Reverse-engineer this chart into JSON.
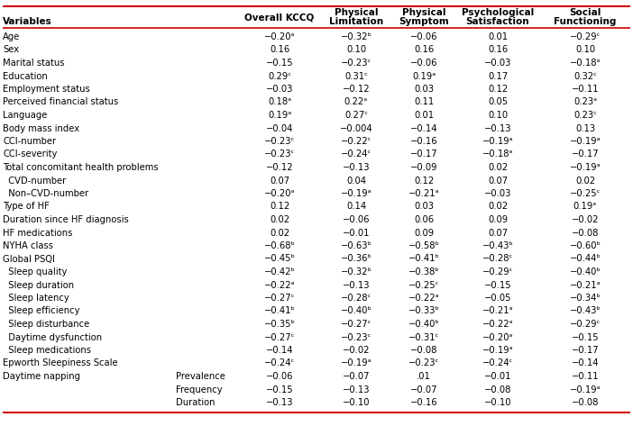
{
  "col_headers_line1": [
    "",
    "",
    "",
    "Physical",
    "Physical",
    "Psychological",
    "Social"
  ],
  "col_headers_line2": [
    "Variables",
    "",
    "Overall KCCQ",
    "Limitation",
    "Symptom",
    "Satisfaction",
    "Functioning"
  ],
  "rows": [
    {
      "var": "Age",
      "sub": "",
      "vals": [
        "−0.20ᵃ",
        "−0.32ᵇ",
        "−0.06",
        "0.01",
        "−0.29ᶜ"
      ]
    },
    {
      "var": "Sex",
      "sub": "",
      "vals": [
        "0.16",
        "0.10",
        "0.16",
        "0.16",
        "0.10"
      ]
    },
    {
      "var": "Marital status",
      "sub": "",
      "vals": [
        "−0.15",
        "−0.23ᶜ",
        "−0.06",
        "−0.03",
        "−0.18ᵃ"
      ]
    },
    {
      "var": "Education",
      "sub": "",
      "vals": [
        "0.29ᶜ",
        "0.31ᶜ",
        "0.19ᵃ",
        "0.17",
        "0.32ᶜ"
      ]
    },
    {
      "var": "Employment status",
      "sub": "",
      "vals": [
        "−0.03",
        "−0.12",
        "0.03",
        "0.12",
        "−0.11"
      ]
    },
    {
      "var": "Perceived financial status",
      "sub": "",
      "vals": [
        "0.18ᵃ",
        "0.22ᵃ",
        "0.11",
        "0.05",
        "0.23ᵃ"
      ]
    },
    {
      "var": "Language",
      "sub": "",
      "vals": [
        "0.19ᵃ",
        "0.27ᶜ",
        "0.01",
        "0.10",
        "0.23ᶜ"
      ]
    },
    {
      "var": "Body mass index",
      "sub": "",
      "vals": [
        "−0.04",
        "−0.004",
        "−0.14",
        "−0.13",
        "0.13"
      ]
    },
    {
      "var": "CCI-number",
      "sub": "",
      "vals": [
        "−0.23ᶜ",
        "−0.22ᶜ",
        "−0.16",
        "−0.19ᵃ",
        "−0.19ᵃ"
      ]
    },
    {
      "var": "CCI-severity",
      "sub": "",
      "vals": [
        "−0.23ᶜ",
        "−0.24ᶜ",
        "−0.17",
        "−0.18ᵃ",
        "−0.17"
      ]
    },
    {
      "var": "Total concomitant health problems",
      "sub": "",
      "vals": [
        "−0.12",
        "−0.13",
        "−0.09",
        "0.02",
        "−0.19ᵃ"
      ]
    },
    {
      "var": "  CVD-number",
      "sub": "",
      "vals": [
        "0.07",
        "0.04",
        "0.12",
        "0.07",
        "0.02"
      ]
    },
    {
      "var": "  Non–CVD-number",
      "sub": "",
      "vals": [
        "−0.20ᵃ",
        "−0.19ᵃ",
        "−0.21ᵃ",
        "−0.03",
        "−0.25ᶜ"
      ]
    },
    {
      "var": "Type of HF",
      "sub": "",
      "vals": [
        "0.12",
        "0.14",
        "0.03",
        "0.02",
        "0.19ᵃ"
      ]
    },
    {
      "var": "Duration since HF diagnosis",
      "sub": "",
      "vals": [
        "0.02",
        "−0.06",
        "0.06",
        "0.09",
        "−0.02"
      ]
    },
    {
      "var": "HF medications",
      "sub": "",
      "vals": [
        "0.02",
        "−0.01",
        "0.09",
        "0.07",
        "−0.08"
      ]
    },
    {
      "var": "NYHA class",
      "sub": "",
      "vals": [
        "−0.68ᵇ",
        "−0.63ᵇ",
        "−0.58ᵇ",
        "−0.43ᵇ",
        "−0.60ᵇ"
      ]
    },
    {
      "var": "Global PSQI",
      "sub": "",
      "vals": [
        "−0.45ᵇ",
        "−0.36ᵇ",
        "−0.41ᵇ",
        "−0.28ᶜ",
        "−0.44ᵇ"
      ]
    },
    {
      "var": "  Sleep quality",
      "sub": "",
      "vals": [
        "−0.42ᵇ",
        "−0.32ᵇ",
        "−0.38ᵇ",
        "−0.29ᶜ",
        "−0.40ᵇ"
      ]
    },
    {
      "var": "  Sleep duration",
      "sub": "",
      "vals": [
        "−0.22ᵃ",
        "−0.13",
        "−0.25ᶜ",
        "−0.15",
        "−0.21ᵃ"
      ]
    },
    {
      "var": "  Sleep latency",
      "sub": "",
      "vals": [
        "−0.27ᶜ",
        "−0.28ᶜ",
        "−0.22ᵃ",
        "−0.05",
        "−0.34ᵇ"
      ]
    },
    {
      "var": "  Sleep efficiency",
      "sub": "",
      "vals": [
        "−0.41ᵇ",
        "−0.40ᵇ",
        "−0.33ᵇ",
        "−0.21ᵃ",
        "−0.43ᵇ"
      ]
    },
    {
      "var": "  Sleep disturbance",
      "sub": "",
      "vals": [
        "−0.35ᵇ",
        "−0.27ᶜ",
        "−0.40ᵇ",
        "−0.22ᵃ",
        "−0.29ᶜ"
      ]
    },
    {
      "var": "  Daytime dysfunction",
      "sub": "",
      "vals": [
        "−0.27ᶜ",
        "−0.23ᶜ",
        "−0.31ᶜ",
        "−0.20ᵃ",
        "−0.15"
      ]
    },
    {
      "var": "  Sleep medications",
      "sub": "",
      "vals": [
        "−0.14",
        "−0.02",
        "−0.08",
        "−0.19ᵃ",
        "−0.17"
      ]
    },
    {
      "var": "Epworth Sleepiness Scale",
      "sub": "",
      "vals": [
        "−0.24ᶜ",
        "−0.19ᵃ",
        "−0.23ᶜ",
        "−0.24ᶜ",
        "−0.14"
      ]
    },
    {
      "var": "Daytime napping",
      "sub": "Prevalence",
      "vals": [
        "−0.06",
        "−0.07",
        ".01",
        "−0.01",
        "−0.11"
      ]
    },
    {
      "var": "",
      "sub": "Frequency",
      "vals": [
        "−0.15",
        "−0.13",
        "−0.07",
        "−0.08",
        "−0.19ᵃ"
      ]
    },
    {
      "var": "",
      "sub": "Duration",
      "vals": [
        "−0.13",
        "−0.10",
        "−0.16",
        "−0.10",
        "−0.08"
      ]
    }
  ],
  "line_color": "#cc0000",
  "bg_color": "#ffffff",
  "text_color": "#000000",
  "font_size": 7.2,
  "header_font_size": 7.5
}
